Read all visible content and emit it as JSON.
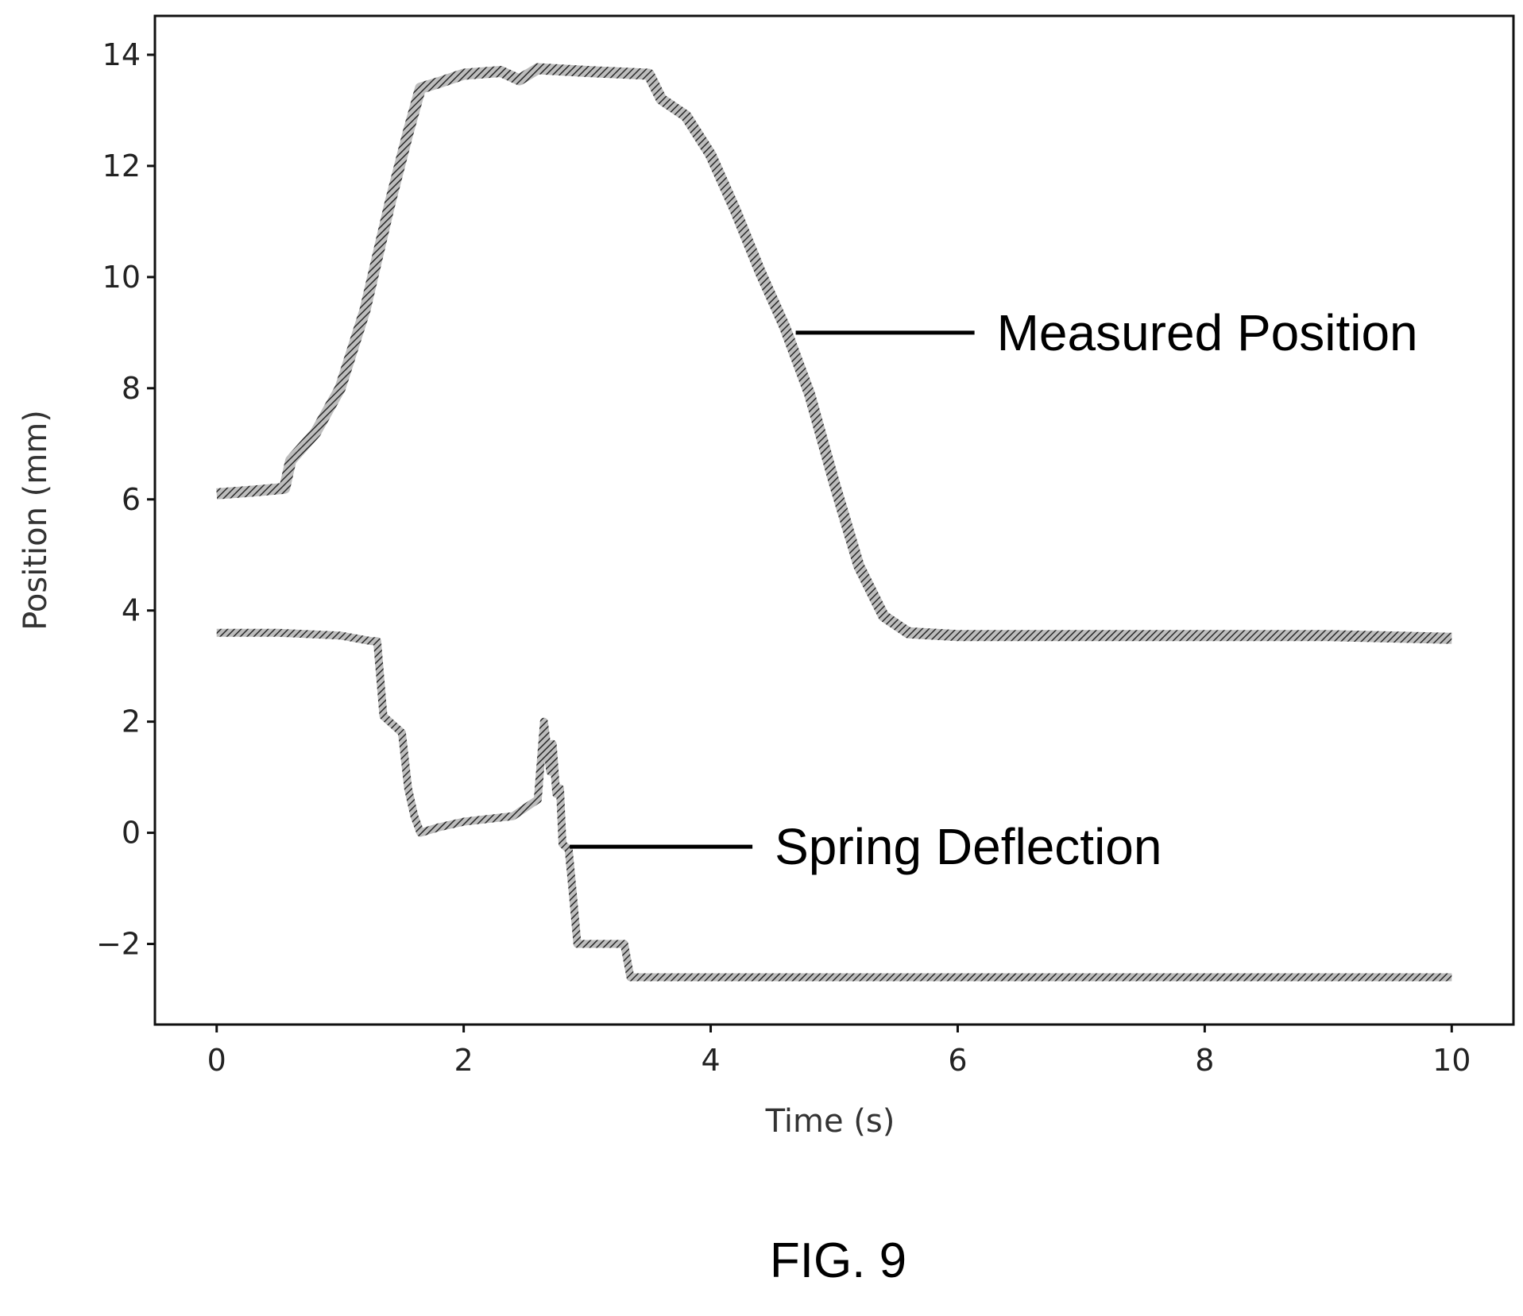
{
  "chart_data": {
    "type": "line",
    "title": "",
    "xlabel": "Time (s)",
    "ylabel": "Position (mm)",
    "xlim": [
      -0.5,
      10.5
    ],
    "ylim": [
      -3.45,
      14.7
    ],
    "xticks": [
      0,
      2,
      4,
      6,
      8,
      10
    ],
    "xtick_labels": [
      "0",
      "2",
      "4",
      "6",
      "8",
      "10"
    ],
    "yticks": [
      -2,
      0,
      2,
      4,
      6,
      8,
      10,
      12,
      14
    ],
    "ytick_labels": [
      "−2",
      "0",
      "2",
      "4",
      "6",
      "8",
      "10",
      "12",
      "14"
    ],
    "grid": false,
    "legend": "none",
    "series": [
      {
        "name": "Measured Position",
        "color": "#555555",
        "x": [
          0,
          0.3,
          0.55,
          0.6,
          0.8,
          1.0,
          1.2,
          1.4,
          1.55,
          1.65,
          1.8,
          2.0,
          2.3,
          2.45,
          2.6,
          3.0,
          3.5,
          3.6,
          3.8,
          4.0,
          4.2,
          4.4,
          4.6,
          4.8,
          5.0,
          5.2,
          5.4,
          5.6,
          6.0,
          7.0,
          8.0,
          9.0,
          10.0
        ],
        "y": [
          6.1,
          6.15,
          6.2,
          6.7,
          7.2,
          8.0,
          9.4,
          11.3,
          12.6,
          13.4,
          13.5,
          13.65,
          13.7,
          13.55,
          13.75,
          13.7,
          13.65,
          13.2,
          12.9,
          12.2,
          11.2,
          10.1,
          9.1,
          7.9,
          6.3,
          4.8,
          3.9,
          3.6,
          3.55,
          3.55,
          3.55,
          3.55,
          3.5
        ]
      },
      {
        "name": "Spring Deflection",
        "color": "#555555",
        "x": [
          0,
          0.5,
          1.0,
          1.25,
          1.3,
          1.35,
          1.4,
          1.5,
          1.55,
          1.6,
          1.65,
          1.8,
          2.0,
          2.4,
          2.6,
          2.65,
          2.7,
          2.72,
          2.75,
          2.78,
          2.8,
          2.85,
          2.88,
          2.92,
          3.1,
          3.3,
          3.35,
          4.0,
          6.0,
          8.0,
          10.0
        ],
        "y": [
          3.6,
          3.6,
          3.55,
          3.45,
          3.45,
          2.1,
          2.0,
          1.8,
          0.8,
          0.3,
          0.0,
          0.1,
          0.2,
          0.3,
          0.6,
          2.0,
          1.1,
          1.6,
          0.7,
          0.8,
          -0.2,
          -0.3,
          -1.0,
          -2.0,
          -2.0,
          -2.0,
          -2.6,
          -2.6,
          -2.6,
          -2.6,
          -2.6
        ]
      }
    ],
    "annotations": [
      {
        "text": "Measured Position",
        "series": 0,
        "x": 4.65,
        "y": 9.0
      },
      {
        "text": "Spring Deflection",
        "series": 1,
        "x": 2.82,
        "y": -0.25
      }
    ]
  },
  "figure": {
    "caption": "FIG. 9"
  }
}
